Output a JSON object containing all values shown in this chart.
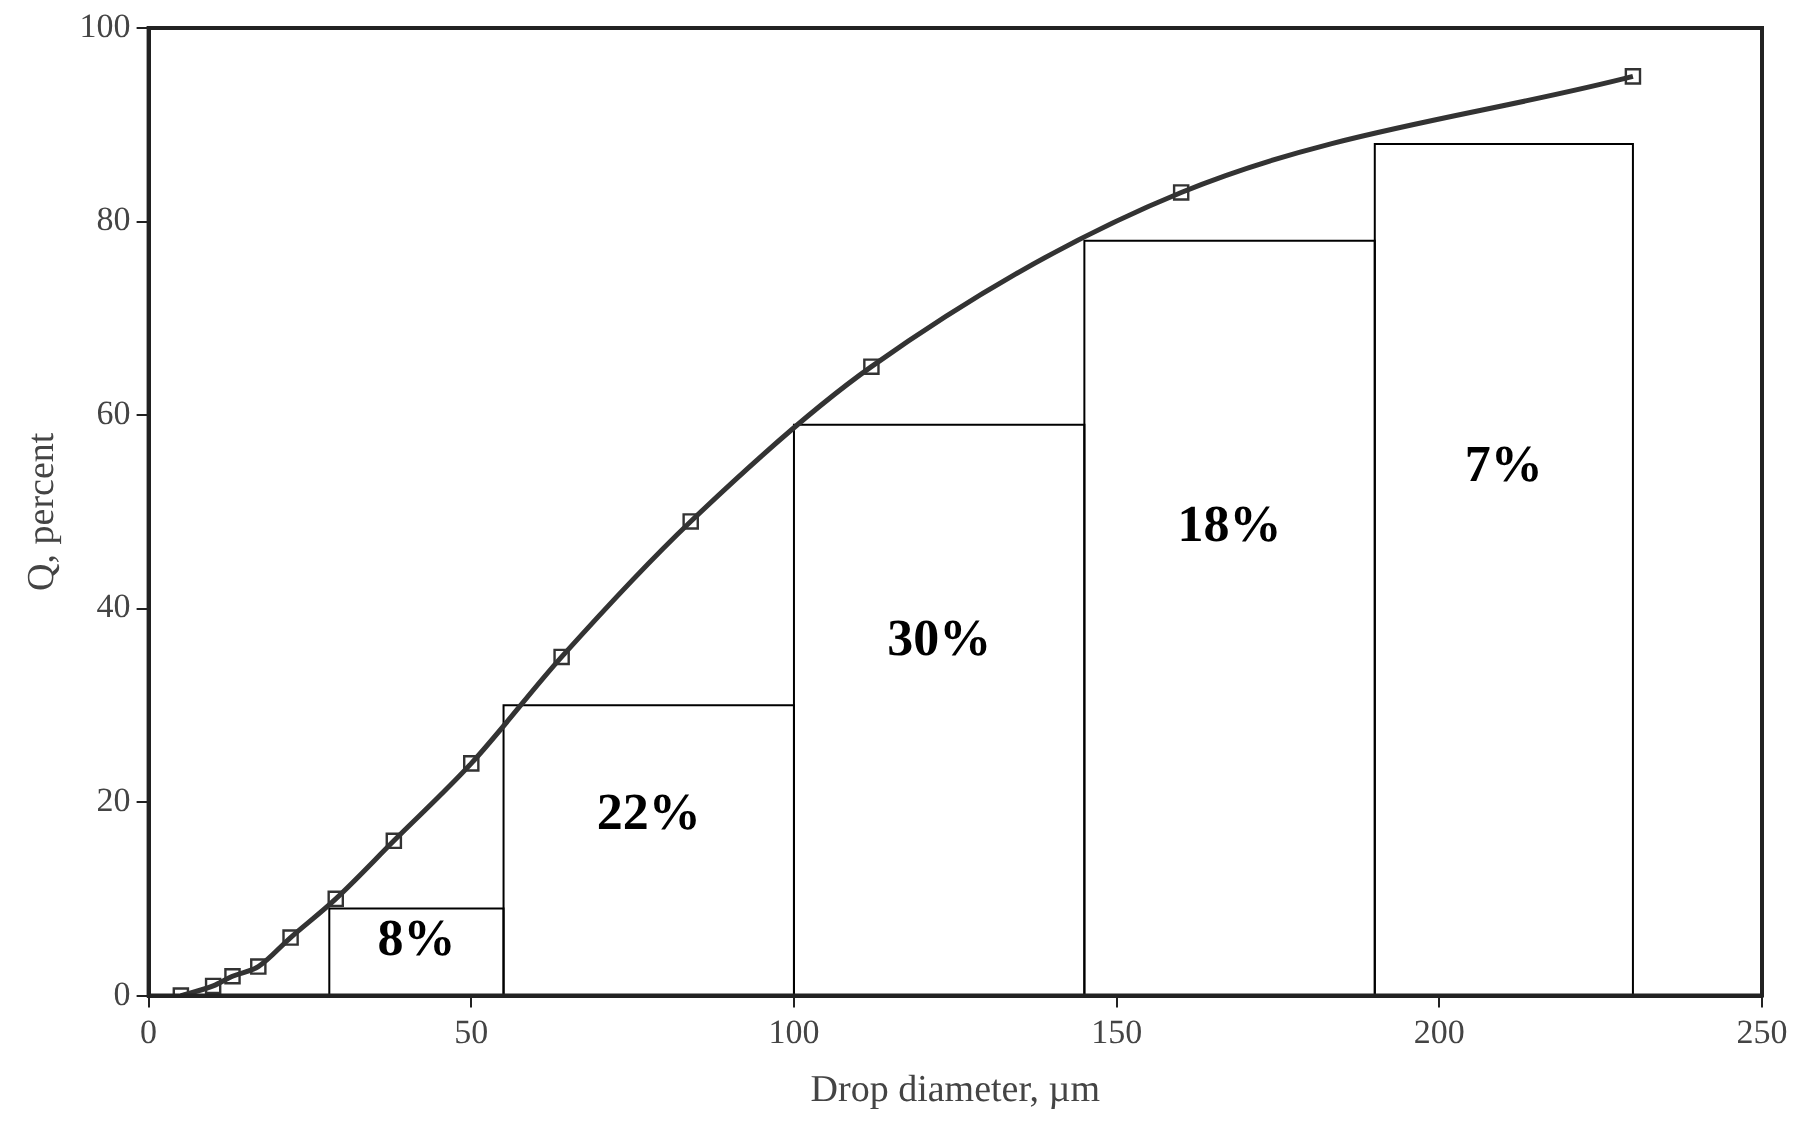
{
  "chart_data": {
    "type": "line",
    "xlabel": "Drop diameter, µm",
    "ylabel": "Q, percent",
    "xlim": [
      0,
      250
    ],
    "xticks": [
      0,
      50,
      100,
      150,
      200,
      250
    ],
    "ylim": [
      0,
      100
    ],
    "yticks": [
      0,
      20,
      40,
      60,
      80,
      100
    ],
    "grid": false,
    "legend": false,
    "marker": "square",
    "series": [
      {
        "type": "line",
        "color": "#333333",
        "x": [
          5,
          10,
          13,
          17,
          22,
          29,
          38,
          50,
          64,
          84,
          112,
          160,
          230
        ],
        "values": [
          0,
          1,
          2,
          3,
          6,
          10,
          16,
          24,
          35,
          49,
          65,
          83,
          95
        ]
      },
      {
        "type": "histogram",
        "color": "#000000",
        "bins": [
          28,
          55,
          100,
          145,
          190,
          230
        ],
        "values": [
          9,
          30,
          59,
          78,
          88
        ]
      }
    ],
    "annotations": [
      "8%",
      "22%",
      "30%",
      "18%",
      "7%"
    ]
  }
}
